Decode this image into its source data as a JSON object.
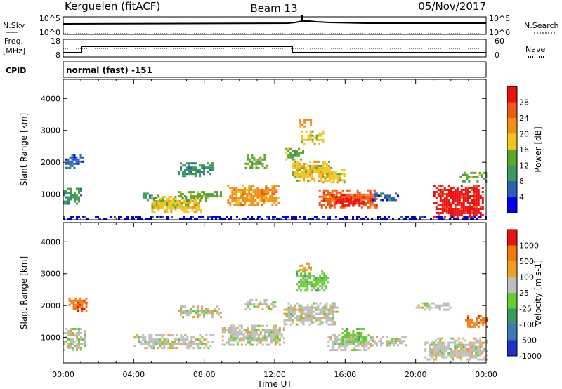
{
  "header": {
    "station": "Kerguelen (fitACF)",
    "beam": "Beam 13",
    "date": "05/Nov/2017"
  },
  "nsky_panel": {
    "left_label": "N.Sky",
    "right_label": "N.Search",
    "left_ticks": [
      "10^5",
      "10^0"
    ],
    "right_ticks": [
      "10^5",
      "10^0"
    ]
  },
  "freq_panel": {
    "left_label_1": "Freq.",
    "left_label_2": "[MHz]",
    "left_ticks": [
      "18",
      "8"
    ],
    "right_label": "Nave",
    "right_ticks": [
      "60",
      "0"
    ]
  },
  "cpid": {
    "label": "CPID",
    "mode": "normal (fast) -151"
  },
  "colors": {
    "power": [
      "#0000ee",
      "#2b5fb8",
      "#3a9a5c",
      "#5aa62e",
      "#eec520",
      "#f19016",
      "#f05a10",
      "#ee1010"
    ],
    "velocity": [
      "#2030c8",
      "#3a7ab8",
      "#3a9a60",
      "#66cc33",
      "#bdbdbd",
      "#f0a020",
      "#f07a10",
      "#ee1010"
    ]
  },
  "chart_data": [
    {
      "type": "heatmap",
      "name": "power",
      "ylabel": "Slant Range [km]",
      "yticks": [
        "4000",
        "3000",
        "2000",
        "1000"
      ],
      "ylim": [
        200,
        4600
      ],
      "xlim": [
        "00:00",
        "24:00"
      ],
      "colorbar_label": "Power [dB]",
      "colorbar_ticks": [
        "28",
        "24",
        "20",
        "16",
        "12",
        "8",
        "4"
      ],
      "regions": [
        {
          "t0": 0.1,
          "t1": 1.1,
          "r0": 1850,
          "r1": 2250,
          "v": 1
        },
        {
          "t0": 0.0,
          "t1": 1.0,
          "r0": 700,
          "r1": 1200,
          "v": 2
        },
        {
          "t0": 4.5,
          "t1": 5.5,
          "r0": 850,
          "r1": 1050,
          "v": 2
        },
        {
          "t0": 5.0,
          "t1": 7.8,
          "r0": 450,
          "r1": 950,
          "v": 4
        },
        {
          "t0": 6.5,
          "t1": 8.5,
          "r0": 1600,
          "r1": 2000,
          "v": 2
        },
        {
          "t0": 6.5,
          "t1": 9.0,
          "r0": 800,
          "r1": 1100,
          "v": 3
        },
        {
          "t0": 9.3,
          "t1": 12.2,
          "r0": 700,
          "r1": 1300,
          "v": 5
        },
        {
          "t0": 10.3,
          "t1": 11.6,
          "r0": 1850,
          "r1": 2250,
          "v": 3
        },
        {
          "t0": 12.6,
          "t1": 13.6,
          "r0": 2100,
          "r1": 2450,
          "v": 3
        },
        {
          "t0": 13.0,
          "t1": 15.3,
          "r0": 1400,
          "r1": 2050,
          "v": 4
        },
        {
          "t0": 13.5,
          "t1": 14.7,
          "r0": 2600,
          "r1": 3000,
          "v": 4
        },
        {
          "t0": 13.4,
          "t1": 14.0,
          "r0": 3150,
          "r1": 3350,
          "v": 5
        },
        {
          "t0": 14.7,
          "t1": 16.0,
          "r0": 1400,
          "r1": 1800,
          "v": 4
        },
        {
          "t0": 14.5,
          "t1": 17.8,
          "r0": 600,
          "r1": 1150,
          "v": 6
        },
        {
          "t0": 15.2,
          "t1": 17.0,
          "r0": 650,
          "r1": 1000,
          "v": 7
        },
        {
          "t0": 17.5,
          "t1": 19.0,
          "r0": 800,
          "r1": 1050,
          "v": 1
        },
        {
          "t0": 21.0,
          "t1": 23.8,
          "r0": 300,
          "r1": 1300,
          "v": 7
        },
        {
          "t0": 22.5,
          "t1": 24.0,
          "r0": 1400,
          "r1": 1700,
          "v": 3
        },
        {
          "t0": 0.0,
          "t1": 24.0,
          "r0": 200,
          "r1": 330,
          "v": 0
        }
      ]
    },
    {
      "type": "heatmap",
      "name": "velocity",
      "ylabel": "Slant Range [km]",
      "yticks": [
        "4000",
        "3000",
        "2000",
        "1000"
      ],
      "ylim": [
        200,
        4600
      ],
      "xlim": [
        "00:00",
        "24:00"
      ],
      "xticks": [
        "00:00",
        "04:00",
        "08:00",
        "12:00",
        "16:00",
        "20:00",
        "00:00"
      ],
      "xlabel": "Time UT",
      "colorbar_label": "Velocity [m s-1]",
      "colorbar_ticks": [
        "1000",
        "500",
        "100",
        "25",
        "-25",
        "-100",
        "-500",
        "-1000"
      ],
      "regions": [
        {
          "t0": 0.3,
          "t1": 1.3,
          "r0": 1850,
          "r1": 2250,
          "v": 6
        },
        {
          "t0": 0.0,
          "t1": 1.2,
          "r0": 600,
          "r1": 1300,
          "v": 4
        },
        {
          "t0": 4.0,
          "t1": 8.5,
          "r0": 700,
          "r1": 1100,
          "v": 4
        },
        {
          "t0": 6.5,
          "t1": 9.0,
          "r0": 1650,
          "r1": 2000,
          "v": 4
        },
        {
          "t0": 9.0,
          "t1": 12.5,
          "r0": 800,
          "r1": 1400,
          "v": 4
        },
        {
          "t0": 10.3,
          "t1": 12.0,
          "r0": 1900,
          "r1": 2200,
          "v": 4
        },
        {
          "t0": 12.5,
          "t1": 15.5,
          "r0": 1400,
          "r1": 2100,
          "v": 4
        },
        {
          "t0": 13.2,
          "t1": 15.0,
          "r0": 2500,
          "r1": 3100,
          "v": 3
        },
        {
          "t0": 13.4,
          "t1": 14.0,
          "r0": 3150,
          "r1": 3350,
          "v": 5
        },
        {
          "t0": 15.0,
          "t1": 17.5,
          "r0": 600,
          "r1": 1100,
          "v": 4
        },
        {
          "t0": 15.8,
          "t1": 17.2,
          "r0": 850,
          "r1": 1300,
          "v": 3
        },
        {
          "t0": 17.5,
          "t1": 19.5,
          "r0": 750,
          "r1": 1050,
          "v": 4
        },
        {
          "t0": 20.5,
          "t1": 24.0,
          "r0": 300,
          "r1": 1000,
          "v": 4
        },
        {
          "t0": 22.8,
          "t1": 24.0,
          "r0": 1350,
          "r1": 1700,
          "v": 6
        },
        {
          "t0": 20.0,
          "t1": 22.0,
          "r0": 1900,
          "r1": 2100,
          "v": 4
        }
      ]
    }
  ]
}
